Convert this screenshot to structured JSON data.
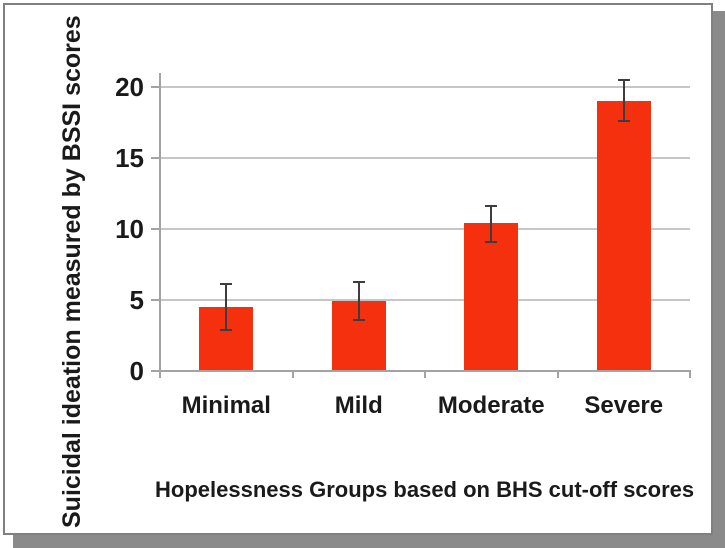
{
  "figure": {
    "kind": "static bar chart figure with drop shadow",
    "border_color": "#808080",
    "shadow_color": "#8a8a8a",
    "background_color": "#ffffff"
  },
  "chart_data": {
    "type": "bar",
    "title": "",
    "xlabel": "Hopelessness Groups based on BHS cut-off scores",
    "ylabel": "Suicidal ideation measured by BSSI scores",
    "categories": [
      "Minimal",
      "Mild",
      "Moderate",
      "Severe"
    ],
    "values": [
      4.5,
      4.9,
      10.4,
      19.0
    ],
    "error_bars": {
      "upper": [
        6.1,
        6.3,
        11.6,
        20.5
      ],
      "lower": [
        2.9,
        3.6,
        9.1,
        17.6
      ]
    },
    "yticks": [
      0,
      5,
      10,
      15,
      20
    ],
    "ylim": [
      0,
      21
    ],
    "grid": true,
    "legend": false,
    "bar_color": "#f4300e",
    "gridline_color": "#c6c6c6",
    "axis_color": "#a3a3a3",
    "error_bar_color": "#3d3d3d",
    "text_color": "#1a1a1a"
  }
}
